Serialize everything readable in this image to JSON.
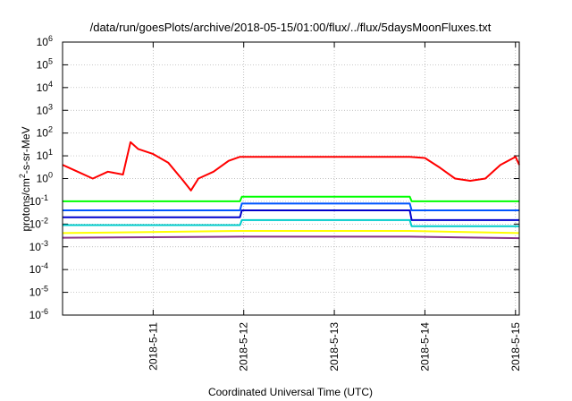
{
  "chart_data": {
    "type": "line",
    "title": "/data/run/goesPlots/archive/2018-05-15/01:00/flux/../flux/5daysMoonFluxes.txt",
    "xlabel": "Coordinated Universal Time (UTC)",
    "ylabel": "protons/cm2-s-sr-MeV",
    "ylabel_parts": {
      "pre": "protons/cm",
      "sup": "2",
      "post": "-s-sr-MeV"
    },
    "yscale": "log",
    "ylim": [
      1e-06,
      1000000.0
    ],
    "xlim": [
      "2018-05-10 00:00",
      "2018-05-15 01:00"
    ],
    "y_ticks": [
      {
        "base": "10",
        "exp": "6"
      },
      {
        "base": "10",
        "exp": "5"
      },
      {
        "base": "10",
        "exp": "4"
      },
      {
        "base": "10",
        "exp": "3"
      },
      {
        "base": "10",
        "exp": "2"
      },
      {
        "base": "10",
        "exp": "1"
      },
      {
        "base": "10",
        "exp": "0"
      },
      {
        "base": "10",
        "exp": "-1"
      },
      {
        "base": "10",
        "exp": "-2"
      },
      {
        "base": "10",
        "exp": "-3"
      },
      {
        "base": "10",
        "exp": "-4"
      },
      {
        "base": "10",
        "exp": "-5"
      },
      {
        "base": "10",
        "exp": "-6"
      }
    ],
    "x_ticks": [
      "2018-5-11",
      "2018-5-12",
      "2018-5-13",
      "2018-5-14",
      "2018-5-15"
    ],
    "grid": true,
    "legend": "none",
    "series": [
      {
        "color": "#ff0000",
        "x": [
          "2018-05-10 00:00",
          "2018-05-10 04:00",
          "2018-05-10 08:00",
          "2018-05-10 12:00",
          "2018-05-10 16:00",
          "2018-05-10 18:00",
          "2018-05-10 20:00",
          "2018-05-11 00:00",
          "2018-05-11 04:00",
          "2018-05-11 08:00",
          "2018-05-11 10:00",
          "2018-05-11 12:00",
          "2018-05-11 16:00",
          "2018-05-11 20:00",
          "2018-05-11 23:00",
          "2018-05-13 20:00",
          "2018-05-14 00:00",
          "2018-05-14 04:00",
          "2018-05-14 08:00",
          "2018-05-14 12:00",
          "2018-05-14 16:00",
          "2018-05-14 20:00",
          "2018-05-15 00:00",
          "2018-05-15 01:00"
        ],
        "y": [
          4,
          2,
          1,
          2,
          1.5,
          40,
          20,
          12,
          5,
          0.8,
          0.3,
          1,
          2,
          6,
          9,
          9,
          8,
          3,
          1,
          0.8,
          1,
          4,
          9,
          4
        ]
      },
      {
        "color": "#00ff00",
        "x": [
          "2018-05-10 00:00",
          "2018-05-11 23:00",
          "2018-05-11 23:30",
          "2018-05-13 20:00",
          "2018-05-13 20:30",
          "2018-05-15 01:00"
        ],
        "y": [
          0.1,
          0.1,
          0.16,
          0.16,
          0.1,
          0.1
        ]
      },
      {
        "color": "#0055ff",
        "x": [
          "2018-05-10 00:00",
          "2018-05-11 23:00",
          "2018-05-11 23:30",
          "2018-05-13 20:00",
          "2018-05-13 20:30",
          "2018-05-15 01:00"
        ],
        "y": [
          0.04,
          0.04,
          0.08,
          0.08,
          0.04,
          0.04
        ]
      },
      {
        "color": "#0000cc",
        "x": [
          "2018-05-10 00:00",
          "2018-05-11 23:00",
          "2018-05-11 23:30",
          "2018-05-13 20:00",
          "2018-05-13 20:30",
          "2018-05-15 01:00"
        ],
        "y": [
          0.02,
          0.02,
          0.04,
          0.04,
          0.015,
          0.015
        ]
      },
      {
        "color": "#00cccc",
        "x": [
          "2018-05-10 00:00",
          "2018-05-11 23:00",
          "2018-05-11 23:30",
          "2018-05-13 20:00",
          "2018-05-13 20:30",
          "2018-05-15 01:00"
        ],
        "y": [
          0.009,
          0.009,
          0.015,
          0.015,
          0.008,
          0.008
        ]
      },
      {
        "color": "#ffff00",
        "x": [
          "2018-05-10 00:00",
          "2018-05-11 23:00",
          "2018-05-13 20:00",
          "2018-05-15 01:00"
        ],
        "y": [
          0.004,
          0.005,
          0.005,
          0.004
        ]
      },
      {
        "color": "#883388",
        "x": [
          "2018-05-10 00:00",
          "2018-05-11 23:00",
          "2018-05-13 20:00",
          "2018-05-15 01:00"
        ],
        "y": [
          0.0025,
          0.0028,
          0.0028,
          0.0024
        ]
      }
    ]
  }
}
